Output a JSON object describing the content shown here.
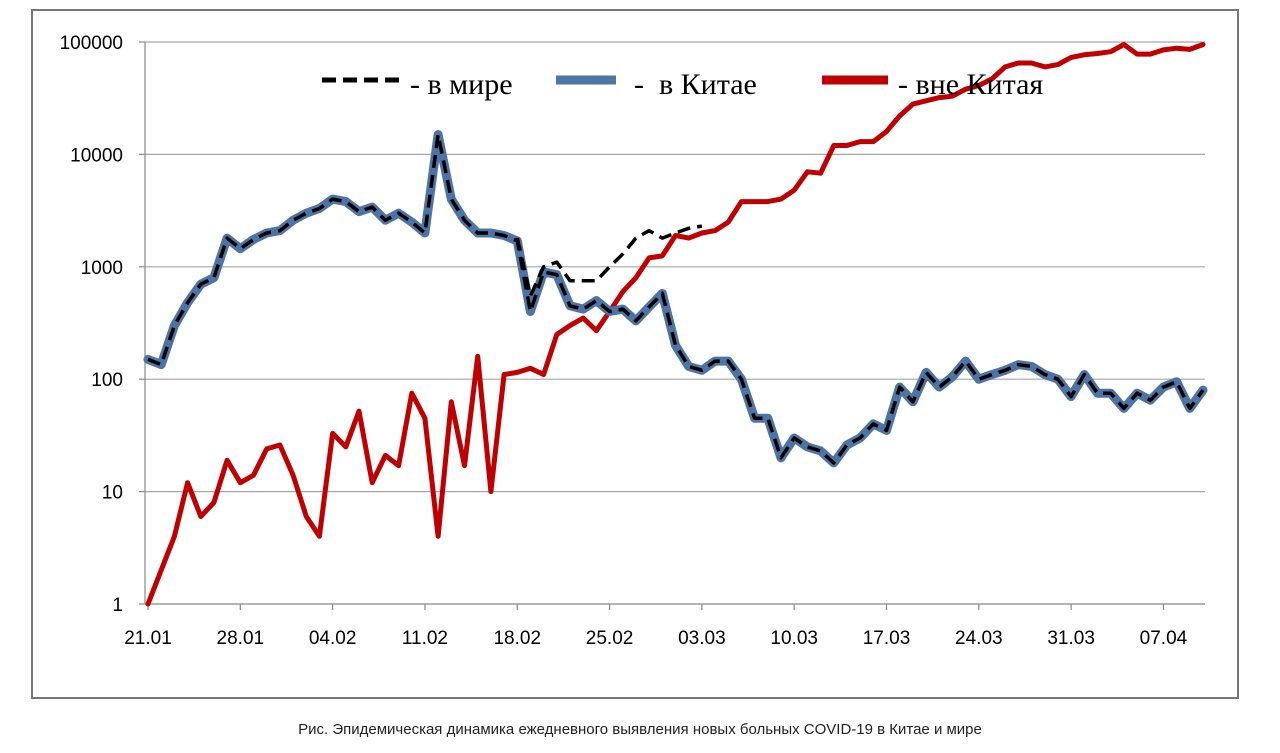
{
  "caption": "Рис. Эпидемическая динамика ежедневного выявления новых больных COVID-19 в Китае и мире",
  "chart_data": {
    "type": "line",
    "y_scale": "log",
    "ylim": [
      1,
      100000
    ],
    "y_ticks": [
      "1",
      "10",
      "100",
      "1000",
      "10000",
      "100000"
    ],
    "y_tick_values": [
      1,
      10,
      100,
      1000,
      10000,
      100000
    ],
    "x_start": "21.01",
    "x_end": "10.04",
    "x_tick_labels": [
      "21.01",
      "28.01",
      "04.02",
      "11.02",
      "18.02",
      "25.02",
      "03.03",
      "10.03",
      "17.03",
      "24.03",
      "31.03",
      "07.04"
    ],
    "grid": "horizontal",
    "legend_position": "top",
    "legend": [
      {
        "label": "- в мире",
        "color": "#000000",
        "style": "dashed"
      },
      {
        "label": "-  в Китае",
        "color": "#4e74a6",
        "style": "solid"
      },
      {
        "label": "- вне Китая",
        "color": "#c00000",
        "style": "solid"
      }
    ],
    "series": [
      {
        "name": "в Китае",
        "color": "#4e74a6",
        "values": [
          150,
          135,
          300,
          480,
          700,
          800,
          1800,
          1450,
          1750,
          2000,
          2100,
          2600,
          3000,
          3300,
          4000,
          3800,
          3100,
          3400,
          2600,
          3000,
          2500,
          2000,
          15000,
          4000,
          2600,
          2000,
          2000,
          1900,
          1700,
          400,
          900,
          850,
          450,
          420,
          500,
          400,
          420,
          330,
          440,
          580,
          200,
          130,
          120,
          145,
          145,
          100,
          45,
          45,
          20,
          30,
          25,
          23,
          18,
          26,
          30,
          40,
          35,
          85,
          63,
          115,
          85,
          105,
          145,
          100,
          110,
          120,
          135,
          130,
          110,
          100,
          70,
          110,
          75,
          75,
          55,
          75,
          65,
          85,
          95,
          55,
          80
        ]
      },
      {
        "name": "вне Китая",
        "color": "#c00000",
        "values": [
          1,
          2,
          4,
          12,
          6,
          8,
          19,
          12,
          14,
          24,
          26,
          14,
          6,
          4,
          33,
          25,
          52,
          12,
          21,
          17,
          75,
          45,
          4,
          63,
          17,
          160,
          10,
          110,
          115,
          125,
          110,
          250,
          300,
          350,
          270,
          400,
          600,
          800,
          1200,
          1250,
          1900,
          1800,
          2000,
          2100,
          2500,
          3800,
          3800,
          3800,
          4000,
          4800,
          7000,
          6800,
          12000,
          12000,
          13000,
          13000,
          16000,
          22000,
          28000,
          30000,
          32000,
          33000,
          38000,
          41000,
          47000,
          60000,
          65000,
          65000,
          60000,
          63000,
          73000,
          77000,
          79000,
          82000,
          95000,
          78000,
          78000,
          85000,
          88000,
          86000,
          95000
        ]
      },
      {
        "name": "в мире",
        "color": "#000000",
        "start_index": 28,
        "values": [
          1800,
          550,
          1000,
          1100,
          750,
          750,
          750,
          1000,
          1300,
          1800,
          2100,
          1800,
          2000,
          2200,
          2300
        ]
      }
    ]
  }
}
